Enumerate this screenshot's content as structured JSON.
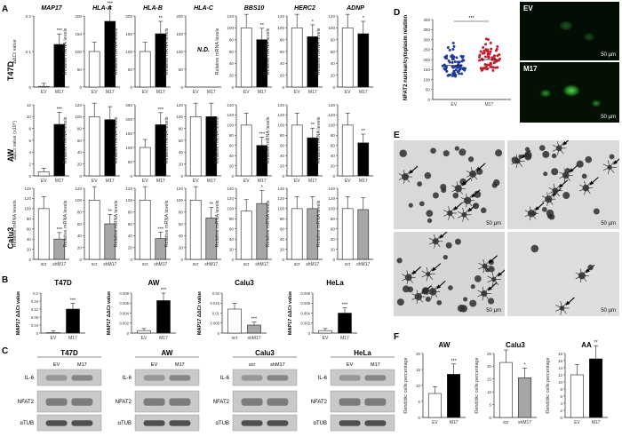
{
  "panels": {
    "A": "A",
    "B": "B",
    "C": "C",
    "D": "D",
    "E": "E",
    "F": "F"
  },
  "genes": [
    "MAP17",
    "HLA-A",
    "HLA-B",
    "HLA-C",
    "BBS10",
    "HERC2",
    "ADNP"
  ],
  "row_labels": [
    "T47D",
    "AW",
    "Calu3"
  ],
  "ylabels": {
    "ddct": "ΔΔCt value",
    "ddct_aw": "ΔΔCt value (x10⁶)",
    "rel": "Relative mRNA levels",
    "map17_ddct": "MAP17 ΔΔCt value"
  },
  "conditions": {
    "ev": "EV",
    "m17": "M17",
    "scr": "scr",
    "shm17": "shM17"
  },
  "nd_label": "N.D.",
  "colors": {
    "ev": "#ffffff",
    "m17": "#000000",
    "sh": "#a6a6a6",
    "err": "#222222"
  },
  "chart_data": [
    {
      "type": "bar",
      "panel": "A",
      "description_rows": [
        "T47D",
        "AW",
        "Calu3"
      ],
      "series": [
        {
          "row": "T47D",
          "gene": "MAP17",
          "categories": [
            "EV",
            "M17"
          ],
          "values": [
            0.002,
            0.12
          ],
          "ylim": [
            0,
            0.2
          ],
          "ticks": [
            "0",
            "0.1",
            "0.2"
          ],
          "sig": "***"
        },
        {
          "row": "T47D",
          "gene": "HLA-A",
          "categories": [
            "EV",
            "M17"
          ],
          "values": [
            100,
            185
          ],
          "ylim": [
            0,
            200
          ],
          "ticks": [
            "0",
            "50",
            "100",
            "150",
            "200"
          ],
          "sig": "***"
        },
        {
          "row": "T47D",
          "gene": "HLA-B",
          "categories": [
            "EV",
            "M17"
          ],
          "values": [
            100,
            150
          ],
          "ylim": [
            0,
            200
          ],
          "ticks": [
            "0",
            "50",
            "100",
            "150",
            "200"
          ],
          "sig": "**"
        },
        {
          "row": "T47D",
          "gene": "HLA-C",
          "categories": [
            "EV",
            "M17"
          ],
          "values": [
            null,
            null
          ],
          "ylim": [
            0,
            200
          ],
          "ticks": [
            "0",
            "50",
            "100",
            "150",
            "200"
          ],
          "sig": ""
        },
        {
          "row": "T47D",
          "gene": "BBS10",
          "categories": [
            "EV",
            "M17"
          ],
          "values": [
            100,
            80
          ],
          "ylim": [
            0,
            120
          ],
          "ticks": [
            "0",
            "20",
            "40",
            "60",
            "80",
            "100",
            "120"
          ],
          "sig": "**"
        },
        {
          "row": "T47D",
          "gene": "HERC2",
          "categories": [
            "EV",
            "M17"
          ],
          "values": [
            100,
            85
          ],
          "ylim": [
            0,
            120
          ],
          "ticks": [
            "0",
            "20",
            "40",
            "60",
            "80",
            "100",
            "120"
          ],
          "sig": "*"
        },
        {
          "row": "T47D",
          "gene": "ADNP",
          "categories": [
            "EV",
            "M17"
          ],
          "values": [
            100,
            90
          ],
          "ylim": [
            0,
            120
          ],
          "ticks": [
            "0",
            "20",
            "40",
            "60",
            "80",
            "100",
            "120"
          ],
          "sig": "*"
        },
        {
          "row": "AW",
          "gene": "MAP17",
          "categories": [
            "EV",
            "M17"
          ],
          "values": [
            0.7,
            8.7
          ],
          "ylim": [
            0,
            12
          ],
          "ticks": [
            "0",
            "2",
            "4",
            "6",
            "8",
            "10",
            "12"
          ],
          "sig": "***"
        },
        {
          "row": "AW",
          "gene": "HLA-A",
          "categories": [
            "EV",
            "M17"
          ],
          "values": [
            100,
            95
          ],
          "ylim": [
            0,
            120
          ],
          "ticks": [
            "0",
            "20",
            "40",
            "60",
            "80",
            "100",
            "120"
          ],
          "sig": ""
        },
        {
          "row": "AW",
          "gene": "HLA-B",
          "categories": [
            "EV",
            "M17"
          ],
          "values": [
            100,
            180
          ],
          "ylim": [
            0,
            250
          ],
          "ticks": [
            "0",
            "50",
            "100",
            "150",
            "200",
            "250"
          ],
          "sig": "***"
        },
        {
          "row": "AW",
          "gene": "HLA-C",
          "categories": [
            "EV",
            "M17"
          ],
          "values": [
            100,
            100
          ],
          "ylim": [
            0,
            120
          ],
          "ticks": [
            "0",
            "20",
            "40",
            "60",
            "80",
            "100",
            "120"
          ],
          "sig": ""
        },
        {
          "row": "AW",
          "gene": "BBS10",
          "categories": [
            "EV",
            "M17"
          ],
          "values": [
            100,
            60
          ],
          "ylim": [
            0,
            140
          ],
          "ticks": [
            "0",
            "20",
            "40",
            "60",
            "80",
            "100",
            "120",
            "140"
          ],
          "sig": "***"
        },
        {
          "row": "AW",
          "gene": "HERC2",
          "categories": [
            "EV",
            "M17"
          ],
          "values": [
            100,
            75
          ],
          "ylim": [
            0,
            140
          ],
          "ticks": [
            "0",
            "20",
            "40",
            "60",
            "80",
            "100",
            "120",
            "140"
          ],
          "sig": "**"
        },
        {
          "row": "AW",
          "gene": "ADNP",
          "categories": [
            "EV",
            "M17"
          ],
          "values": [
            100,
            65
          ],
          "ylim": [
            0,
            140
          ],
          "ticks": [
            "0",
            "20",
            "40",
            "60",
            "80",
            "100",
            "120",
            "140"
          ],
          "sig": "**"
        },
        {
          "row": "Calu3",
          "gene": "MAP17",
          "categories": [
            "scr",
            "shM17"
          ],
          "values": [
            100,
            40
          ],
          "ylim": [
            0,
            140
          ],
          "ticks": [
            "0",
            "20",
            "40",
            "60",
            "80",
            "100",
            "120",
            "140"
          ],
          "sig": "***"
        },
        {
          "row": "Calu3",
          "gene": "HLA-A",
          "categories": [
            "scr",
            "shM17"
          ],
          "values": [
            100,
            60
          ],
          "ylim": [
            0,
            120
          ],
          "ticks": [
            "0",
            "20",
            "40",
            "60",
            "80",
            "100",
            "120"
          ],
          "sig": "**"
        },
        {
          "row": "Calu3",
          "gene": "HLA-B",
          "categories": [
            "scr",
            "shM17"
          ],
          "values": [
            100,
            35
          ],
          "ylim": [
            0,
            120
          ],
          "ticks": [
            "0",
            "20",
            "40",
            "60",
            "80",
            "100",
            "120"
          ],
          "sig": "***"
        },
        {
          "row": "Calu3",
          "gene": "HLA-C",
          "categories": [
            "scr",
            "shM17"
          ],
          "values": [
            100,
            70
          ],
          "ylim": [
            0,
            120
          ],
          "ticks": [
            "0",
            "20",
            "40",
            "60",
            "80",
            "100",
            "120"
          ],
          "sig": "**"
        },
        {
          "row": "Calu3",
          "gene": "BBS10",
          "categories": [
            "scr",
            "shM17"
          ],
          "values": [
            95,
            110
          ],
          "ylim": [
            0,
            140
          ],
          "ticks": [
            "0",
            "20",
            "40",
            "60",
            "80",
            "100",
            "120",
            "140"
          ],
          "sig": "*"
        },
        {
          "row": "Calu3",
          "gene": "HERC2",
          "categories": [
            "scr",
            "shM17"
          ],
          "values": [
            100,
            100
          ],
          "ylim": [
            0,
            140
          ],
          "ticks": [
            "0",
            "20",
            "40",
            "60",
            "80",
            "100",
            "120",
            "140"
          ],
          "sig": ""
        },
        {
          "row": "Calu3",
          "gene": "ADNP",
          "categories": [
            "scr",
            "shM17"
          ],
          "values": [
            100,
            98
          ],
          "ylim": [
            0,
            140
          ],
          "ticks": [
            "0",
            "20",
            "40",
            "60",
            "80",
            "100",
            "120",
            "140"
          ],
          "sig": ""
        }
      ]
    },
    {
      "type": "bar",
      "panel": "B",
      "series": [
        {
          "title": "T47D",
          "categories": [
            "EV",
            "M17"
          ],
          "values": [
            0.002,
            0.12
          ],
          "ylim": [
            0,
            0.2
          ],
          "ticks": [
            "0",
            "0.04",
            "0.08",
            "0.12",
            "0.16",
            "0.2"
          ],
          "sig": "***"
        },
        {
          "title": "AW",
          "categories": [
            "EV",
            "M17"
          ],
          "values": [
            0.0005,
            0.0065
          ],
          "ylim": [
            0,
            0.008
          ],
          "ticks": [
            "0",
            "0.002",
            "0.004",
            "0.006",
            "0.008"
          ],
          "sig": "***"
        },
        {
          "title": "Calu3",
          "categories": [
            "scr",
            "shM17"
          ],
          "values": [
            0.012,
            0.004
          ],
          "ylim": [
            0,
            0.02
          ],
          "ticks": [
            "0",
            "0.005",
            "0.01",
            "0.015",
            "0.02"
          ],
          "sig": "***"
        },
        {
          "title": "HeLa",
          "categories": [
            "EV",
            "M17"
          ],
          "values": [
            0.0005,
            0.004
          ],
          "ylim": [
            0,
            0.008
          ],
          "ticks": [
            "0",
            "0.002",
            "0.004",
            "0.006",
            "0.008"
          ],
          "sig": "***"
        }
      ]
    },
    {
      "type": "scatter",
      "panel": "D",
      "categories": [
        "EV",
        "M17"
      ],
      "ylabel": "NFAT2 nuclear/cytoplasm relation",
      "ylim": [
        0,
        400
      ],
      "ticks": [
        "0",
        "50",
        "100",
        "150",
        "200",
        "250",
        "300",
        "350",
        "400"
      ],
      "sig": "***",
      "means": [
        170,
        200
      ]
    },
    {
      "type": "bar",
      "panel": "F",
      "ylabel": "Dendritic cells percentage",
      "series": [
        {
          "title": "AW",
          "categories": [
            "EV",
            "M17"
          ],
          "values": [
            7.5,
            13.5
          ],
          "ylim": [
            0,
            20
          ],
          "ticks": [
            "0",
            "5",
            "10",
            "15",
            "20"
          ],
          "sig": "***"
        },
        {
          "title": "Calu3",
          "categories": [
            "scr",
            "shM17"
          ],
          "values": [
            21.5,
            15.5
          ],
          "ylim": [
            0,
            25
          ],
          "ticks": [
            "0",
            "5",
            "10",
            "15",
            "20",
            "25"
          ],
          "sig": "*"
        },
        {
          "title": "AA",
          "categories": [
            "EV",
            "M17"
          ],
          "values": [
            12,
            16.5
          ],
          "ylim": [
            0,
            18
          ],
          "ticks": [
            "0",
            "2",
            "4",
            "6",
            "8",
            "10",
            "12",
            "14",
            "16",
            "18"
          ],
          "sig": "**"
        }
      ]
    }
  ],
  "blots": [
    {
      "title": "T47D",
      "lanes": [
        "EV",
        "M17"
      ],
      "rows": [
        "IL-6",
        "NFAT2",
        "αTUB"
      ]
    },
    {
      "title": "AW",
      "lanes": [
        "EV",
        "M17"
      ],
      "rows": [
        "IL-6",
        "NFAT2",
        "αTUB"
      ]
    },
    {
      "title": "Calu3",
      "lanes": [
        "scr",
        "shM17"
      ],
      "rows": [
        "IL-6",
        "NFAT2",
        "αTUB"
      ]
    },
    {
      "title": "HeLa",
      "lanes": [
        "EV",
        "M17"
      ],
      "rows": [
        "IL-6",
        "NFAT2",
        "αTUB"
      ]
    }
  ],
  "fluor": {
    "top": "EV",
    "bottom": "M17",
    "scale": "50 µm"
  },
  "micro": {
    "scale": "50 µm"
  }
}
